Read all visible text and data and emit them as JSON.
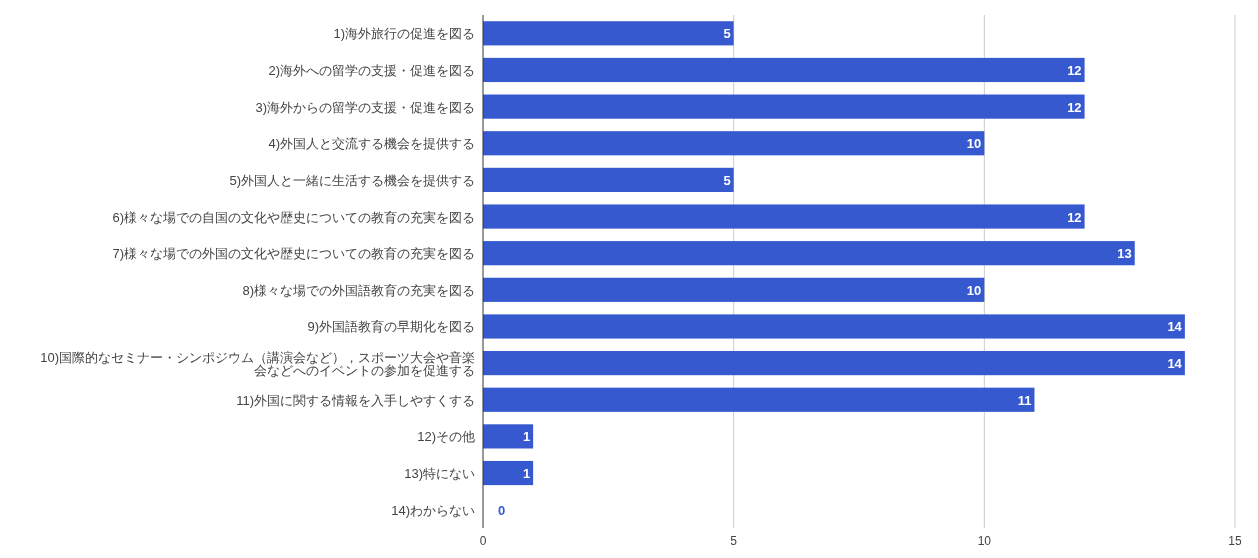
{
  "chart_data": {
    "type": "bar",
    "orientation": "horizontal",
    "categories": [
      "1)海外旅行の促進を図る",
      "2)海外への留学の支援・促進を図る",
      "3)海外からの留学の支援・促進を図る",
      "4)外国人と交流する機会を提供する",
      "5)外国人と一緒に生活する機会を提供する",
      "6)様々な場での自国の文化や歴史についての教育の充実を図る",
      "7)様々な場での外国の文化や歴史についての教育の充実を図る",
      "8)様々な場での外国語教育の充実を図る",
      "9)外国語教育の早期化を図る",
      "10)国際的なセミナー・シンポジウム（講演会など），スポーツ大会や音楽会などへのイベントの参加を促進する",
      "11)外国に関する情報を入手しやすくする",
      "12)その他",
      "13)特にない",
      "14)わからない"
    ],
    "values": [
      5,
      12,
      12,
      10,
      5,
      12,
      13,
      10,
      14,
      14,
      11,
      1,
      1,
      0
    ],
    "color": "#3659d0",
    "xlim": [
      0,
      15
    ],
    "xticks": [
      0,
      5,
      10,
      15
    ],
    "grid": "x",
    "data_labels": true
  }
}
